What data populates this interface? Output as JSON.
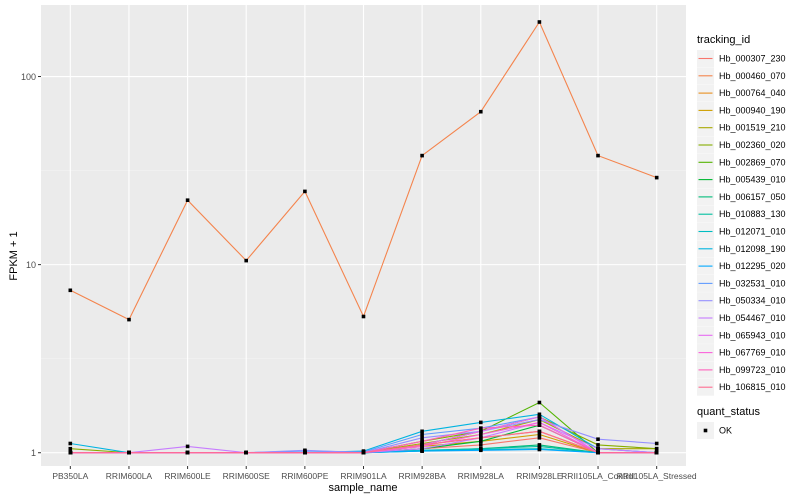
{
  "chart_data": {
    "type": "line",
    "title": "",
    "xlabel": "sample_name",
    "ylabel": "FPKM + 1",
    "yscale": "log10",
    "ylim": [
      0.85,
      240
    ],
    "yticks": [
      1,
      10,
      100
    ],
    "ytick_labels": [
      "1",
      "10",
      "100"
    ],
    "grid": true,
    "categories": [
      "PB350LA",
      "RRIM600LA",
      "RRIM600LE",
      "RRIM600SE",
      "RRIM600PE",
      "RRIM901LA",
      "RRIM928BA",
      "RRIM928LA",
      "RRIM928LE",
      "RRII105LA_Control",
      "RRII105LA_Stressed"
    ],
    "category_labels": [
      "PB350LA",
      "RRIM600LA",
      "RRIM600LE",
      "RRIM600SE",
      "RRIM600PE",
      "RRIM901LA",
      "RRIM928BA",
      "RRIM928LA",
      "RRIM928LE",
      "RRII105LA_Control",
      "RRII105LA_Stressed"
    ],
    "legend_position": "right",
    "legend_title": "tracking_id",
    "shape_legend_title": "quant_status",
    "shape_legend_entries": [
      "OK"
    ],
    "series": [
      {
        "name": "Hb_000307_230",
        "color": "#F8766D",
        "values": [
          1.0,
          1.0,
          1.0,
          1.0,
          1.0,
          1.0,
          1.05,
          1.1,
          1.2,
          1.0,
          1.0
        ]
      },
      {
        "name": "Hb_000460_070",
        "color": "#F4844D",
        "values": [
          7.3,
          5.1,
          22.0,
          10.5,
          24.5,
          5.3,
          38.0,
          65.0,
          195.0,
          38.0,
          29.0
        ]
      },
      {
        "name": "Hb_000764_040",
        "color": "#E8901F",
        "values": [
          1.0,
          1.0,
          1.0,
          1.0,
          1.0,
          1.0,
          1.1,
          1.2,
          1.3,
          1.0,
          1.0
        ]
      },
      {
        "name": "Hb_000940_190",
        "color": "#CF9F00",
        "values": [
          1.0,
          1.0,
          1.0,
          1.0,
          1.0,
          1.0,
          1.08,
          1.15,
          1.25,
          1.0,
          1.0
        ]
      },
      {
        "name": "Hb_001519_210",
        "color": "#A8A800",
        "values": [
          1.0,
          1.0,
          1.0,
          1.0,
          1.0,
          1.0,
          1.12,
          1.25,
          1.5,
          1.05,
          1.05
        ]
      },
      {
        "name": "Hb_002360_020",
        "color": "#86AC00",
        "values": [
          1.05,
          1.0,
          1.0,
          1.0,
          1.0,
          1.0,
          1.15,
          1.3,
          1.55,
          1.1,
          1.05
        ]
      },
      {
        "name": "Hb_002869_070",
        "color": "#53B400",
        "values": [
          1.0,
          1.0,
          1.0,
          1.0,
          1.0,
          1.0,
          1.1,
          1.3,
          1.85,
          1.0,
          1.0
        ]
      },
      {
        "name": "Hb_005439_010",
        "color": "#00B733",
        "values": [
          1.0,
          1.0,
          1.0,
          1.0,
          1.0,
          1.0,
          1.05,
          1.15,
          1.4,
          1.0,
          1.0
        ]
      },
      {
        "name": "Hb_006157_050",
        "color": "#00BC7A",
        "values": [
          1.0,
          1.0,
          1.0,
          1.0,
          1.0,
          1.0,
          1.02,
          1.05,
          1.1,
          1.0,
          1.0
        ]
      },
      {
        "name": "Hb_010883_130",
        "color": "#00BFA0",
        "values": [
          1.0,
          1.0,
          1.0,
          1.0,
          1.0,
          1.0,
          1.03,
          1.05,
          1.08,
          1.0,
          1.0
        ]
      },
      {
        "name": "Hb_012071_010",
        "color": "#00BDC2",
        "values": [
          1.0,
          1.0,
          1.0,
          1.0,
          1.0,
          1.0,
          1.03,
          1.04,
          1.05,
          1.0,
          1.0
        ]
      },
      {
        "name": "Hb_012098_190",
        "color": "#00B4E0",
        "values": [
          1.12,
          1.0,
          1.0,
          1.0,
          1.0,
          1.02,
          1.3,
          1.45,
          1.6,
          1.05,
          1.0
        ]
      },
      {
        "name": "Hb_012295_020",
        "color": "#00A9FF",
        "values": [
          1.0,
          1.0,
          1.0,
          1.0,
          1.0,
          1.0,
          1.02,
          1.03,
          1.04,
          1.0,
          1.0
        ]
      },
      {
        "name": "Hb_032531_010",
        "color": "#619CFF",
        "values": [
          1.0,
          1.0,
          1.0,
          1.0,
          1.02,
          1.01,
          1.25,
          1.35,
          1.55,
          1.0,
          1.0
        ]
      },
      {
        "name": "Hb_050334_010",
        "color": "#9590FF",
        "values": [
          1.0,
          1.0,
          1.0,
          1.0,
          1.03,
          1.0,
          1.2,
          1.3,
          1.5,
          1.18,
          1.12
        ]
      },
      {
        "name": "Hb_054467_010",
        "color": "#C77CFF",
        "values": [
          1.0,
          1.0,
          1.08,
          1.0,
          1.0,
          1.0,
          1.05,
          1.2,
          1.45,
          1.05,
          1.0
        ]
      },
      {
        "name": "Hb_065943_010",
        "color": "#E76BF3",
        "values": [
          1.0,
          1.0,
          1.0,
          1.0,
          1.0,
          1.0,
          1.1,
          1.3,
          1.55,
          1.0,
          1.0
        ]
      },
      {
        "name": "Hb_067769_010",
        "color": "#FA62DB",
        "values": [
          1.0,
          1.0,
          1.0,
          1.0,
          1.0,
          1.0,
          1.08,
          1.25,
          1.45,
          1.0,
          1.0
        ]
      },
      {
        "name": "Hb_099723_010",
        "color": "#FF62BC",
        "values": [
          1.0,
          1.0,
          1.0,
          1.0,
          1.0,
          1.0,
          1.15,
          1.35,
          1.4,
          1.0,
          1.0
        ]
      },
      {
        "name": "Hb_106815_010",
        "color": "#FF6C91",
        "values": [
          1.0,
          1.0,
          1.0,
          1.0,
          1.0,
          1.0,
          1.1,
          1.2,
          1.3,
          1.0,
          1.0
        ]
      }
    ]
  }
}
